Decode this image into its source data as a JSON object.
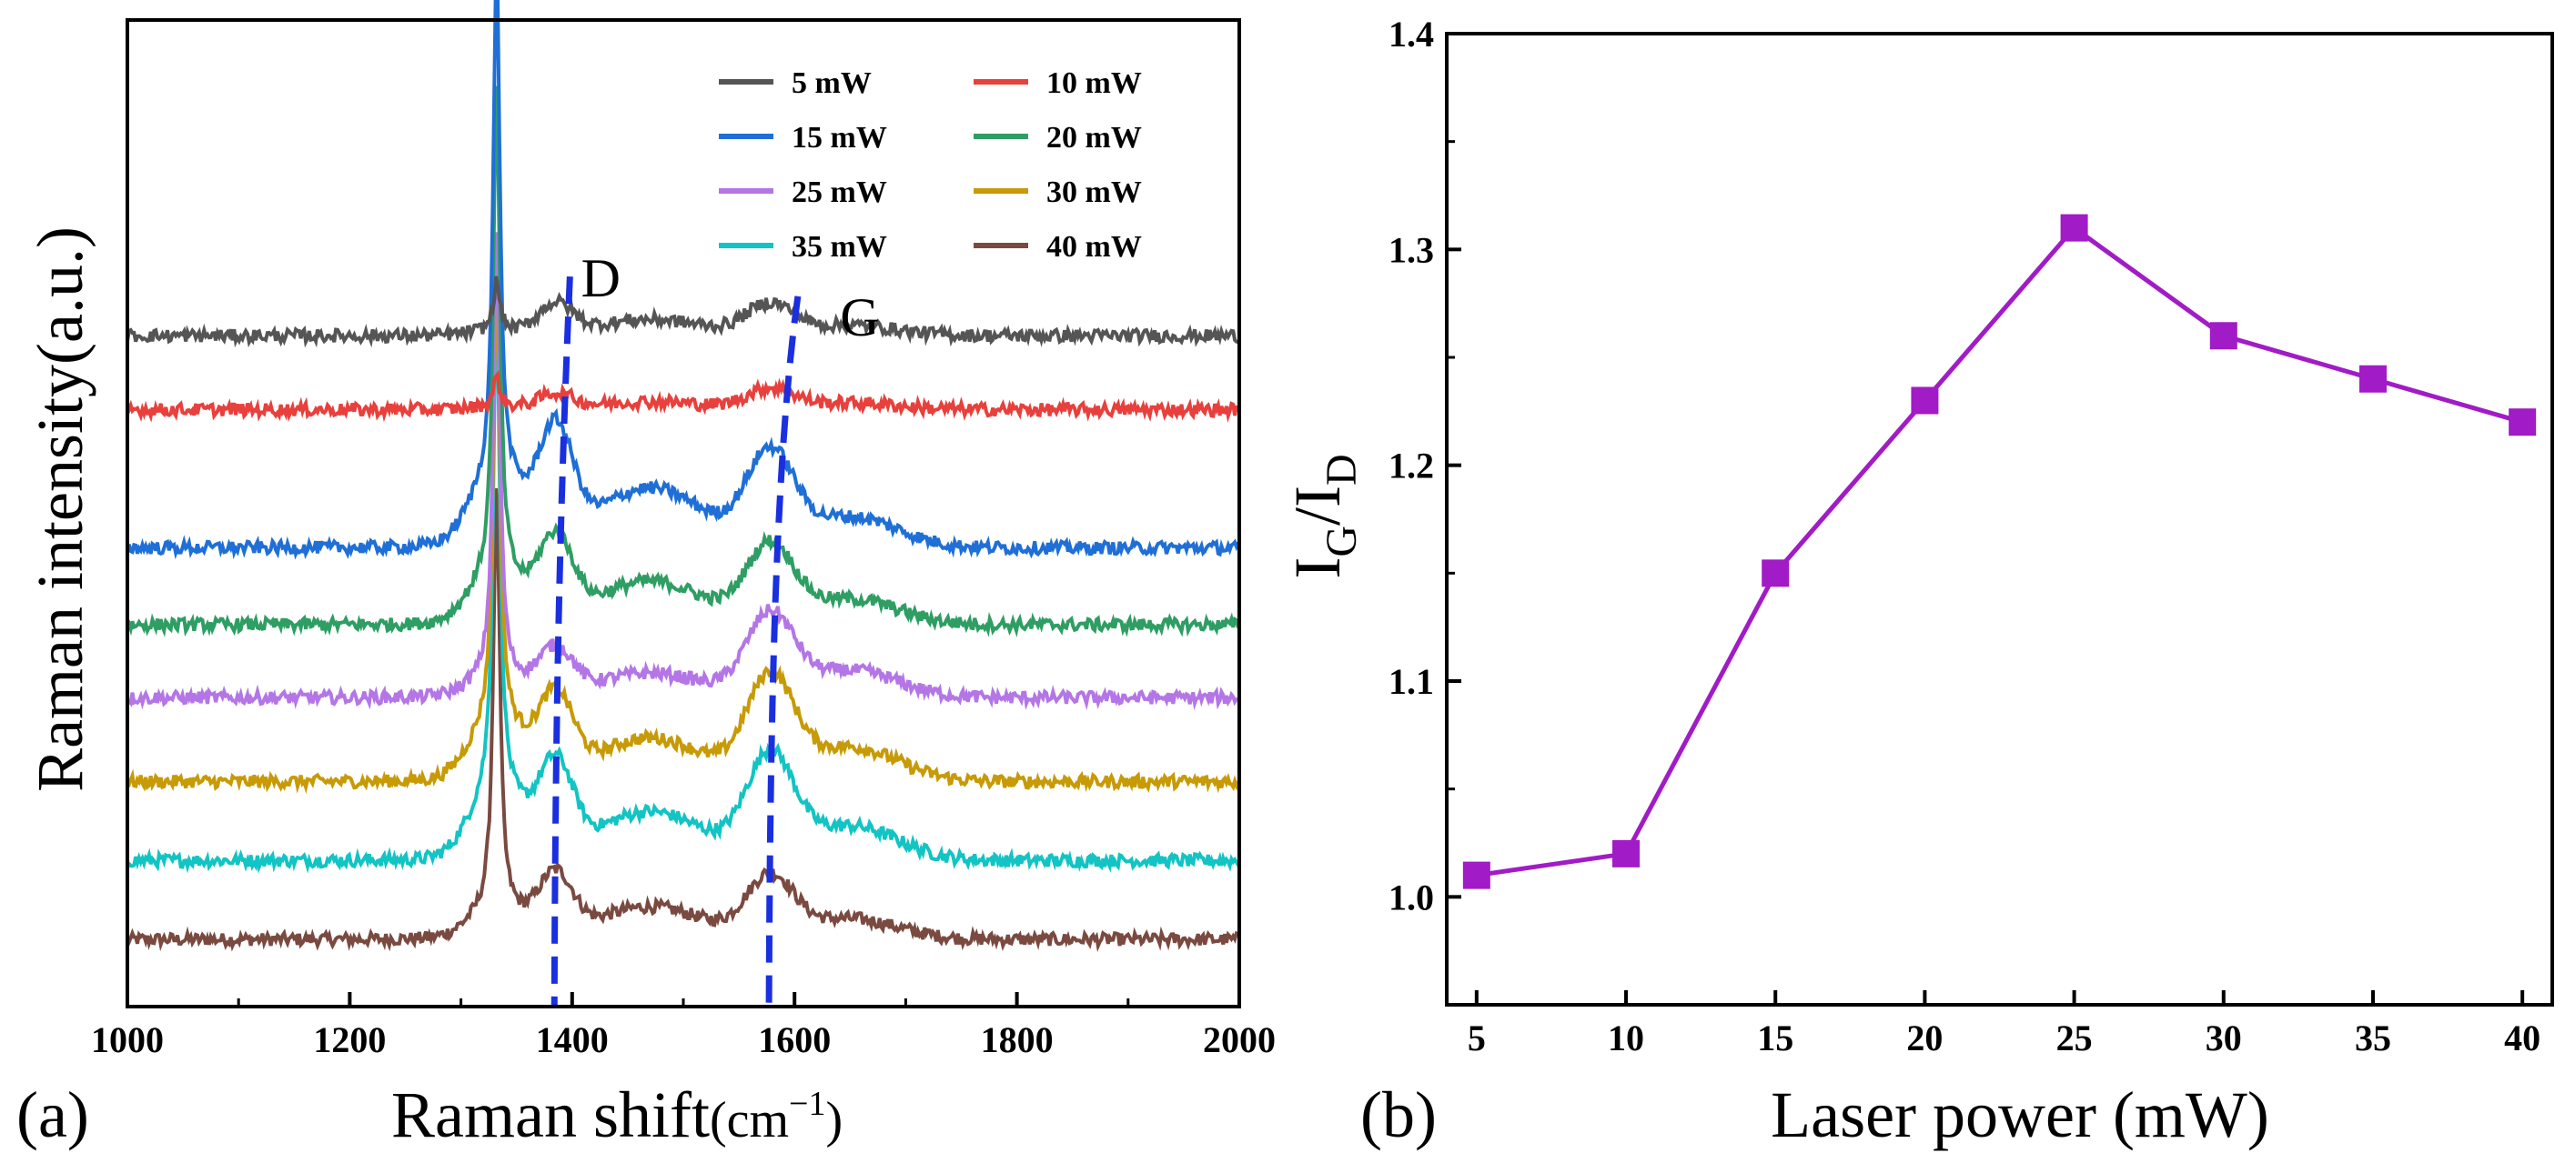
{
  "chart_data": [
    {
      "panel": "(a)",
      "type": "line",
      "xlabel": "Raman shift",
      "xlabel_unit": "(cm",
      "xlabel_exp": "−1",
      "xlabel_close": ")",
      "ylabel": "Raman intensity(a.u.)",
      "xlim": [
        1000,
        2000
      ],
      "xticks": [
        "1000",
        "1200",
        "1400",
        "1600",
        "1800",
        "2000"
      ],
      "ylim": [
        0,
        100
      ],
      "yticks_shown": false,
      "peak_labels": [
        "D",
        "G"
      ],
      "peak_positions": {
        "D": 1385,
        "G": 1578
      },
      "sharp_peak_position": 1332,
      "legend": [
        "5 mW",
        "10 mW",
        "15 mW",
        "20 mW",
        "25 mW",
        "30 mW",
        "35 mW",
        "40 mW"
      ],
      "series": [
        {
          "name": "5 mW",
          "color": "#555555",
          "baseline": 68,
          "peak": 5,
          "d": 3,
          "g": 3,
          "hump": 0.5
        },
        {
          "name": "10 mW",
          "color": "#e8403c",
          "baseline": 60.5,
          "peak": 3,
          "d": 1.5,
          "g": 2,
          "hump": 0.3
        },
        {
          "name": "15 mW",
          "color": "#1f6fd6",
          "baseline": 46.5,
          "peak": 53,
          "d": 11,
          "g": 9,
          "hump": 7
        },
        {
          "name": "20 mW",
          "color": "#2e9e63",
          "baseline": 38.7,
          "peak": 50,
          "d": 8,
          "g": 7.5,
          "hump": 5
        },
        {
          "name": "25 mW",
          "color": "#b476e6",
          "baseline": 31.3,
          "peak": 46,
          "d": 4.5,
          "g": 8,
          "hump": 2
        },
        {
          "name": "30 mW",
          "color": "#c79a06",
          "baseline": 22.8,
          "peak": 47,
          "d": 8,
          "g": 10,
          "hump": 6
        },
        {
          "name": "35 mW",
          "color": "#12c4c4",
          "baseline": 14.8,
          "peak": 51,
          "d": 9,
          "g": 10,
          "hump": 7
        },
        {
          "name": "40 mW",
          "color": "#7a4a40",
          "baseline": 6.8,
          "peak": 43,
          "d": 6,
          "g": 6,
          "hump": 3
        }
      ]
    },
    {
      "panel": "(b)",
      "type": "line",
      "xlabel": "Laser power (mW)",
      "ylabel_main": "I",
      "ylabel_sub1": "G",
      "ylabel_mid": "/I",
      "ylabel_sub2": "D",
      "x": [
        5,
        10,
        15,
        20,
        25,
        30,
        35,
        40
      ],
      "xticks": [
        "5",
        "10",
        "15",
        "20",
        "25",
        "30",
        "35",
        "40"
      ],
      "xlim": [
        4,
        41
      ],
      "ylim": [
        0.95,
        1.4
      ],
      "yticks": [
        "1.0",
        "1.1",
        "1.2",
        "1.3",
        "1.4"
      ],
      "series": [
        {
          "name": "IG/ID",
          "color": "#a11bc6",
          "marker": "square",
          "values": [
            1.01,
            1.02,
            1.15,
            1.23,
            1.31,
            1.26,
            1.24,
            1.22
          ]
        }
      ]
    }
  ]
}
